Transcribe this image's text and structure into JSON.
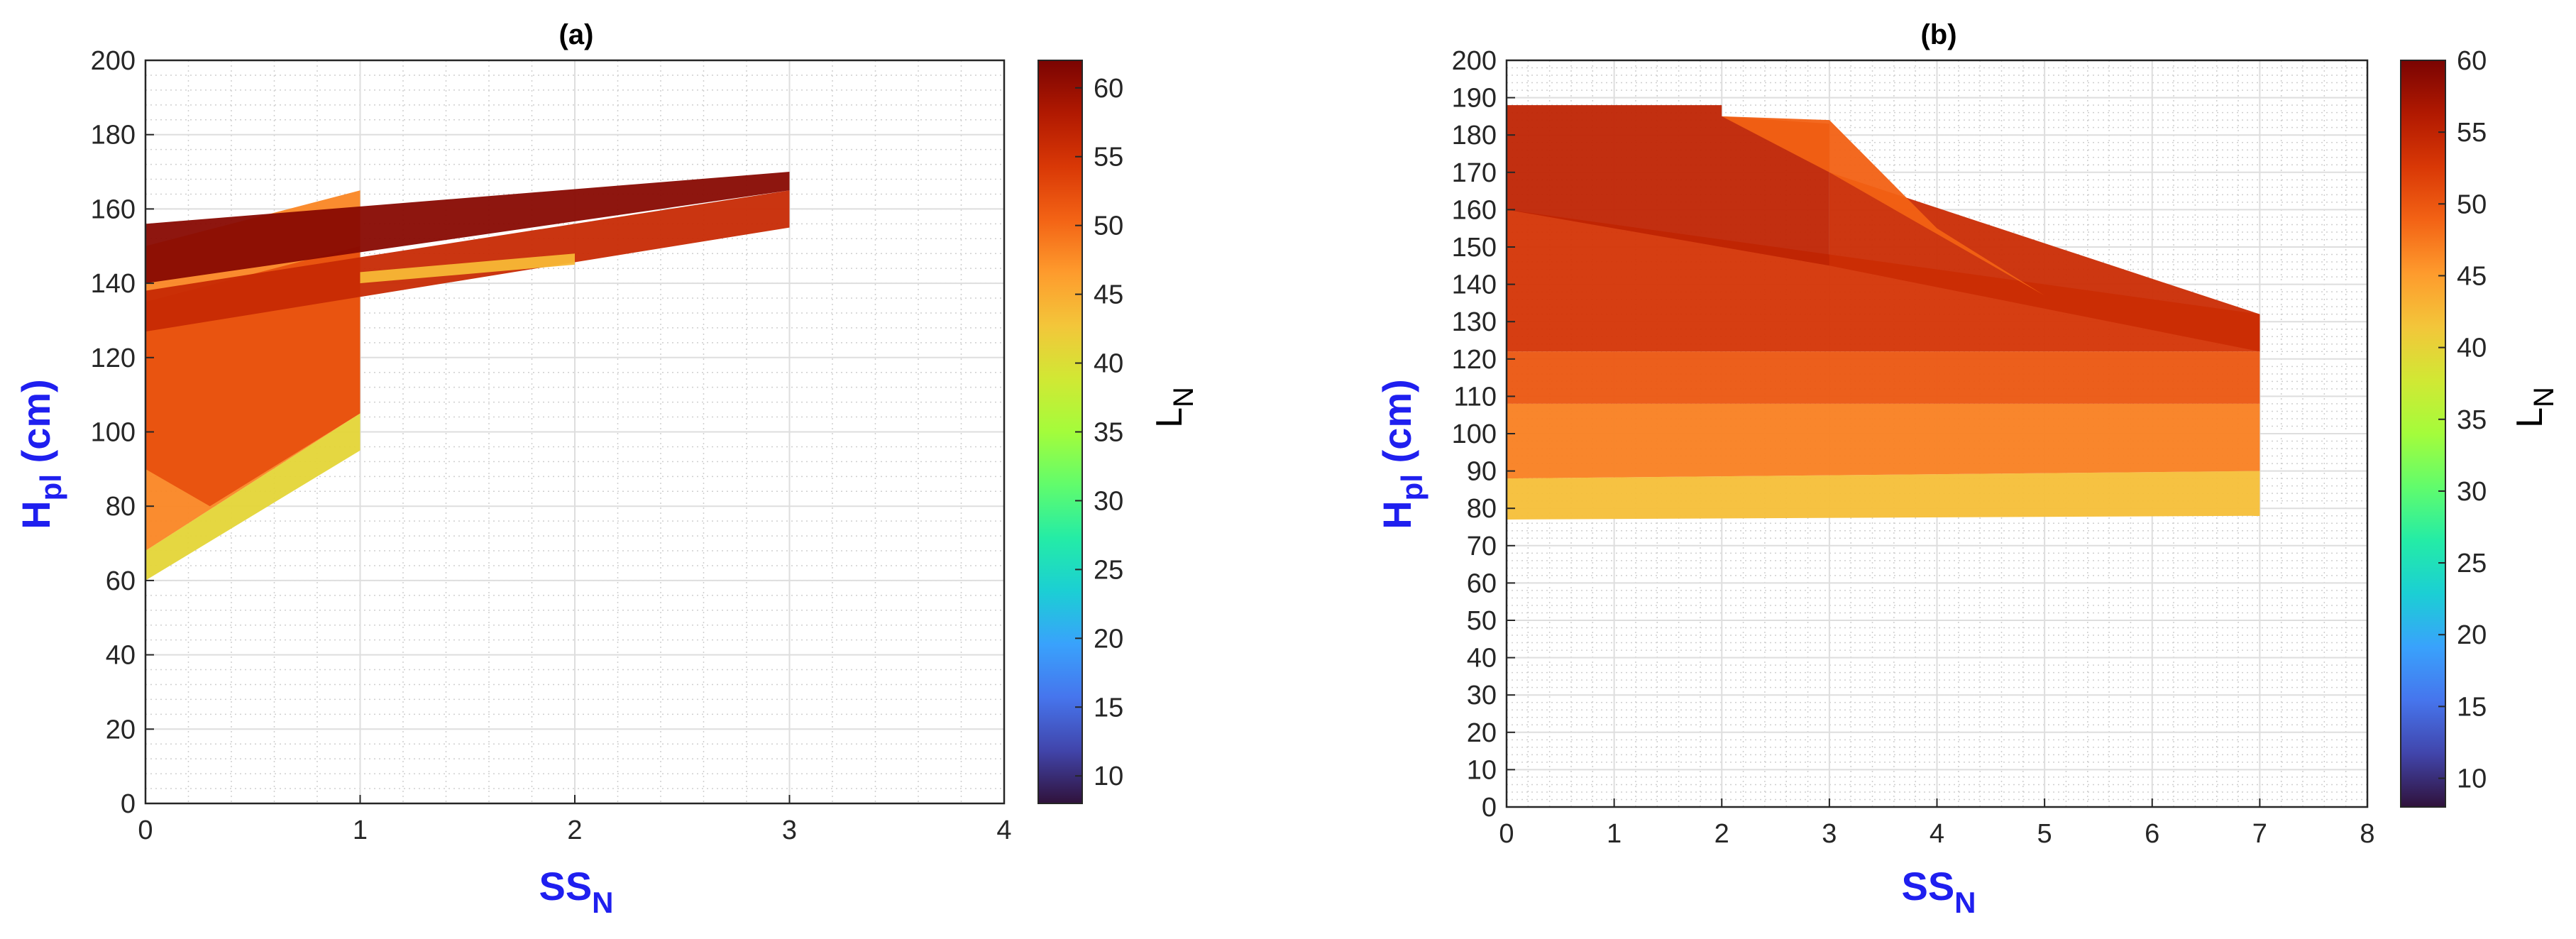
{
  "colormap": [
    "#30123b",
    "#4145ab",
    "#4675ed",
    "#39a2fc",
    "#1bcfd4",
    "#24eca6",
    "#61fc6c",
    "#a4fc3b",
    "#d1e834",
    "#f3c63a",
    "#fe9b2d",
    "#f36315",
    "#d93806",
    "#b11901",
    "#7a0402"
  ],
  "chart_data": [
    {
      "type": "area",
      "title": "(a)",
      "xlabel": "SS",
      "xlabel_sub": "N",
      "ylabel": "H",
      "ylabel_sub": "pl",
      "ylabel_suffix": " (cm)",
      "xlim": [
        0,
        4
      ],
      "ylim": [
        0,
        200
      ],
      "xticks": [
        0,
        1,
        2,
        3,
        4
      ],
      "yticks": [
        0,
        20,
        40,
        60,
        80,
        100,
        120,
        140,
        160,
        180,
        200
      ],
      "grid": true,
      "minor_grid": true,
      "colorbar": {
        "label": "L",
        "label_sub": "N",
        "lim": [
          8,
          62
        ],
        "ticks": [
          10,
          15,
          20,
          25,
          30,
          35,
          40,
          45,
          50,
          55,
          60
        ]
      },
      "series": [
        {
          "x": [
            0,
            1,
            1,
            0
          ],
          "y": [
            60,
            95,
            105,
            68
          ],
          "level": 41
        },
        {
          "x": [
            0,
            1,
            1,
            0
          ],
          "y": [
            68,
            105,
            165,
            150
          ],
          "level": 48
        },
        {
          "x": [
            0,
            0.3,
            1,
            1,
            0
          ],
          "y": [
            90,
            80,
            105,
            150,
            135
          ],
          "level": 52
        },
        {
          "x": [
            0,
            3,
            3,
            0
          ],
          "y": [
            127,
            155,
            165,
            138
          ],
          "level": 56
        },
        {
          "x": [
            0,
            3,
            3,
            0
          ],
          "y": [
            140,
            165,
            170,
            156
          ],
          "level": 61
        },
        {
          "x": [
            1,
            2,
            2,
            1
          ],
          "y": [
            140,
            145,
            148,
            143
          ],
          "level": 44
        }
      ]
    },
    {
      "type": "area",
      "title": "(b)",
      "xlabel": "SS",
      "xlabel_sub": "N",
      "ylabel": "H",
      "ylabel_sub": "pl",
      "ylabel_suffix": " (cm)",
      "xlim": [
        0,
        8
      ],
      "ylim": [
        0,
        200
      ],
      "xticks": [
        0,
        1,
        2,
        3,
        4,
        5,
        6,
        7,
        8
      ],
      "yticks": [
        0,
        10,
        20,
        30,
        40,
        50,
        60,
        70,
        80,
        90,
        100,
        110,
        120,
        130,
        140,
        150,
        160,
        170,
        180,
        190,
        200
      ],
      "grid": true,
      "minor_grid": true,
      "colorbar": {
        "label": "L",
        "label_sub": "N",
        "lim": [
          8,
          60
        ],
        "ticks": [
          10,
          15,
          20,
          25,
          30,
          35,
          40,
          45,
          50,
          55,
          60
        ]
      },
      "series": [
        {
          "x": [
            0,
            7,
            7,
            0
          ],
          "y": [
            77,
            78,
            90,
            88
          ],
          "level": 42
        },
        {
          "x": [
            0,
            7,
            7,
            0
          ],
          "y": [
            88,
            90,
            108,
            108
          ],
          "level": 47
        },
        {
          "x": [
            0,
            7,
            7,
            0
          ],
          "y": [
            108,
            108,
            122,
            122
          ],
          "level": 50
        },
        {
          "x": [
            0,
            7,
            7,
            0
          ],
          "y": [
            122,
            122,
            132,
            160
          ],
          "level": 53
        },
        {
          "x": [
            0,
            3,
            3,
            2,
            2,
            0
          ],
          "y": [
            160,
            145,
            183,
            185,
            188,
            188
          ],
          "level": 55
        },
        {
          "x": [
            3,
            7,
            7,
            3
          ],
          "y": [
            145,
            122,
            132,
            170
          ],
          "level": 54
        },
        {
          "x": [
            2,
            3,
            4,
            5,
            3
          ],
          "y": [
            185,
            184,
            155,
            137,
            170
          ],
          "level": 49
        }
      ]
    }
  ]
}
